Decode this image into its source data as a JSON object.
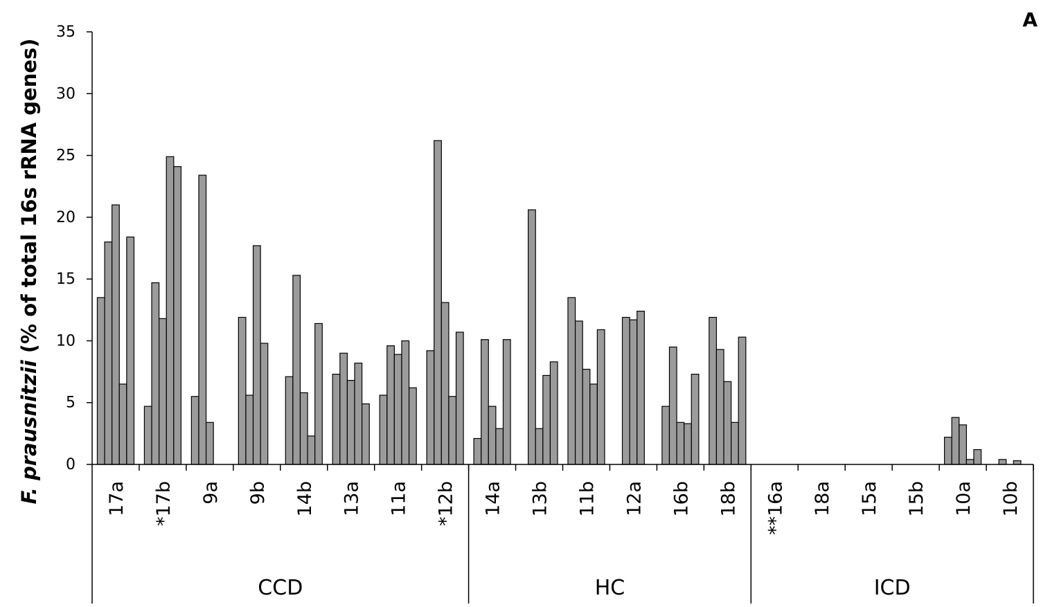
{
  "chart_data": {
    "type": "bar",
    "panel_label": "A",
    "ylabel_italic": "F. prausnitzii",
    "ylabel_rest": " (% of total 16s rRNA genes)",
    "ylim": [
      0,
      35
    ],
    "yticks": [
      0,
      5,
      10,
      15,
      20,
      25,
      30,
      35
    ],
    "grid": false,
    "bar_color": "#9b9b9b",
    "bar_stroke": "#000000",
    "groups": [
      {
        "name": "CCD",
        "categories": [
          {
            "label": "17a",
            "values": [
              13.5,
              18.0,
              21.0,
              6.5,
              18.4
            ]
          },
          {
            "label": "*17b",
            "values": [
              4.7,
              14.7,
              11.8,
              24.9,
              24.1
            ]
          },
          {
            "label": "9a",
            "values": [
              5.5,
              23.4,
              3.4,
              0,
              0
            ]
          },
          {
            "label": "9b",
            "values": [
              11.9,
              5.6,
              17.7,
              9.8,
              0
            ]
          },
          {
            "label": "14b",
            "values": [
              7.1,
              15.3,
              5.8,
              2.3,
              11.4
            ]
          },
          {
            "label": "13a",
            "values": [
              7.3,
              9.0,
              6.8,
              8.2,
              4.9
            ]
          },
          {
            "label": "11a",
            "values": [
              5.6,
              9.6,
              8.9,
              10.0,
              6.2
            ]
          },
          {
            "label": "*12b",
            "values": [
              9.2,
              26.2,
              13.1,
              5.5,
              10.7
            ]
          }
        ]
      },
      {
        "name": "HC",
        "categories": [
          {
            "label": "14a",
            "values": [
              2.1,
              10.1,
              4.7,
              2.9,
              10.1
            ]
          },
          {
            "label": "13b",
            "values": [
              0,
              20.6,
              2.9,
              7.2,
              8.3
            ]
          },
          {
            "label": "11b",
            "values": [
              13.5,
              11.6,
              7.7,
              6.5,
              10.9
            ]
          },
          {
            "label": "12a",
            "values": [
              0,
              11.9,
              11.7,
              12.4,
              0
            ]
          },
          {
            "label": "16b",
            "values": [
              4.7,
              9.5,
              3.4,
              3.3,
              7.3
            ]
          },
          {
            "label": "18b",
            "values": [
              11.9,
              9.3,
              6.7,
              3.4,
              10.3
            ]
          }
        ]
      },
      {
        "name": "ICD",
        "categories": [
          {
            "label": "**16a",
            "values": [
              0,
              0,
              0,
              0,
              0
            ]
          },
          {
            "label": "18a",
            "values": [
              0,
              0,
              0,
              0,
              0
            ]
          },
          {
            "label": "15a",
            "values": [
              0,
              0,
              0,
              0,
              0
            ]
          },
          {
            "label": "15b",
            "values": [
              0,
              0,
              0,
              0,
              0
            ]
          },
          {
            "label": "10a",
            "values": [
              2.2,
              3.8,
              3.2,
              0.4,
              1.2
            ]
          },
          {
            "label": "10b",
            "values": [
              0,
              0.4,
              0,
              0.3,
              0
            ]
          }
        ]
      }
    ]
  }
}
